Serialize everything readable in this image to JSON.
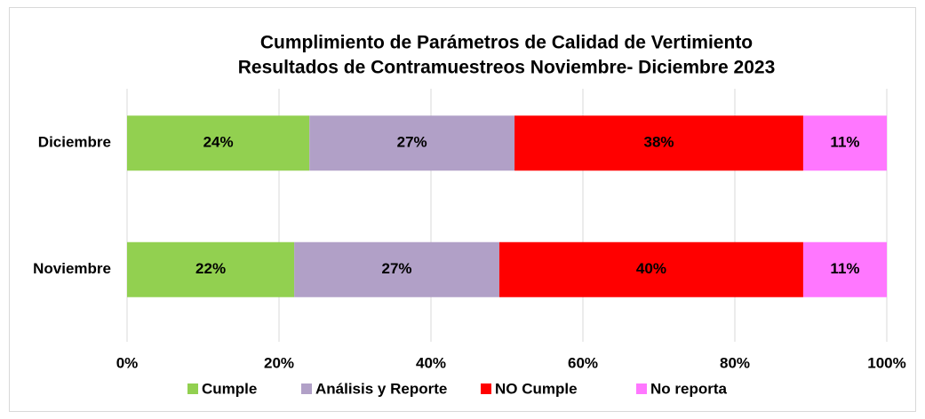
{
  "chart_data": {
    "type": "stacked_bar_horizontal",
    "title": "Cumplimiento de Parámetros de Calidad de Vertimiento",
    "subtitle": "Resultados de Contramuestreos Noviembre- Diciembre 2023",
    "categories": [
      "Diciembre",
      "Noviembre"
    ],
    "series": [
      {
        "name": "Cumple",
        "color": "#92d050",
        "values": [
          24,
          22
        ],
        "value_labels": [
          "24%",
          "22%"
        ]
      },
      {
        "name": "Análisis y Reporte",
        "color": "#b1a0c7",
        "values": [
          27,
          27
        ],
        "value_labels": [
          "27%",
          "27%"
        ]
      },
      {
        "name": "NO Cumple",
        "color": "#ff0000",
        "values": [
          38,
          40
        ],
        "value_labels": [
          "38%",
          "40%"
        ]
      },
      {
        "name": "No reporta",
        "color": "#ff77ff",
        "values": [
          11,
          11
        ],
        "value_labels": [
          "11%",
          "11%"
        ]
      }
    ],
    "xlim": [
      0,
      100
    ],
    "xticks": [
      {
        "value": 0,
        "label": "0%"
      },
      {
        "value": 20,
        "label": "20%"
      },
      {
        "value": 40,
        "label": "40%"
      },
      {
        "value": 60,
        "label": "60%"
      },
      {
        "value": 80,
        "label": "80%"
      },
      {
        "value": 100,
        "label": "100%"
      }
    ],
    "grid": true,
    "legend": "bottom"
  }
}
